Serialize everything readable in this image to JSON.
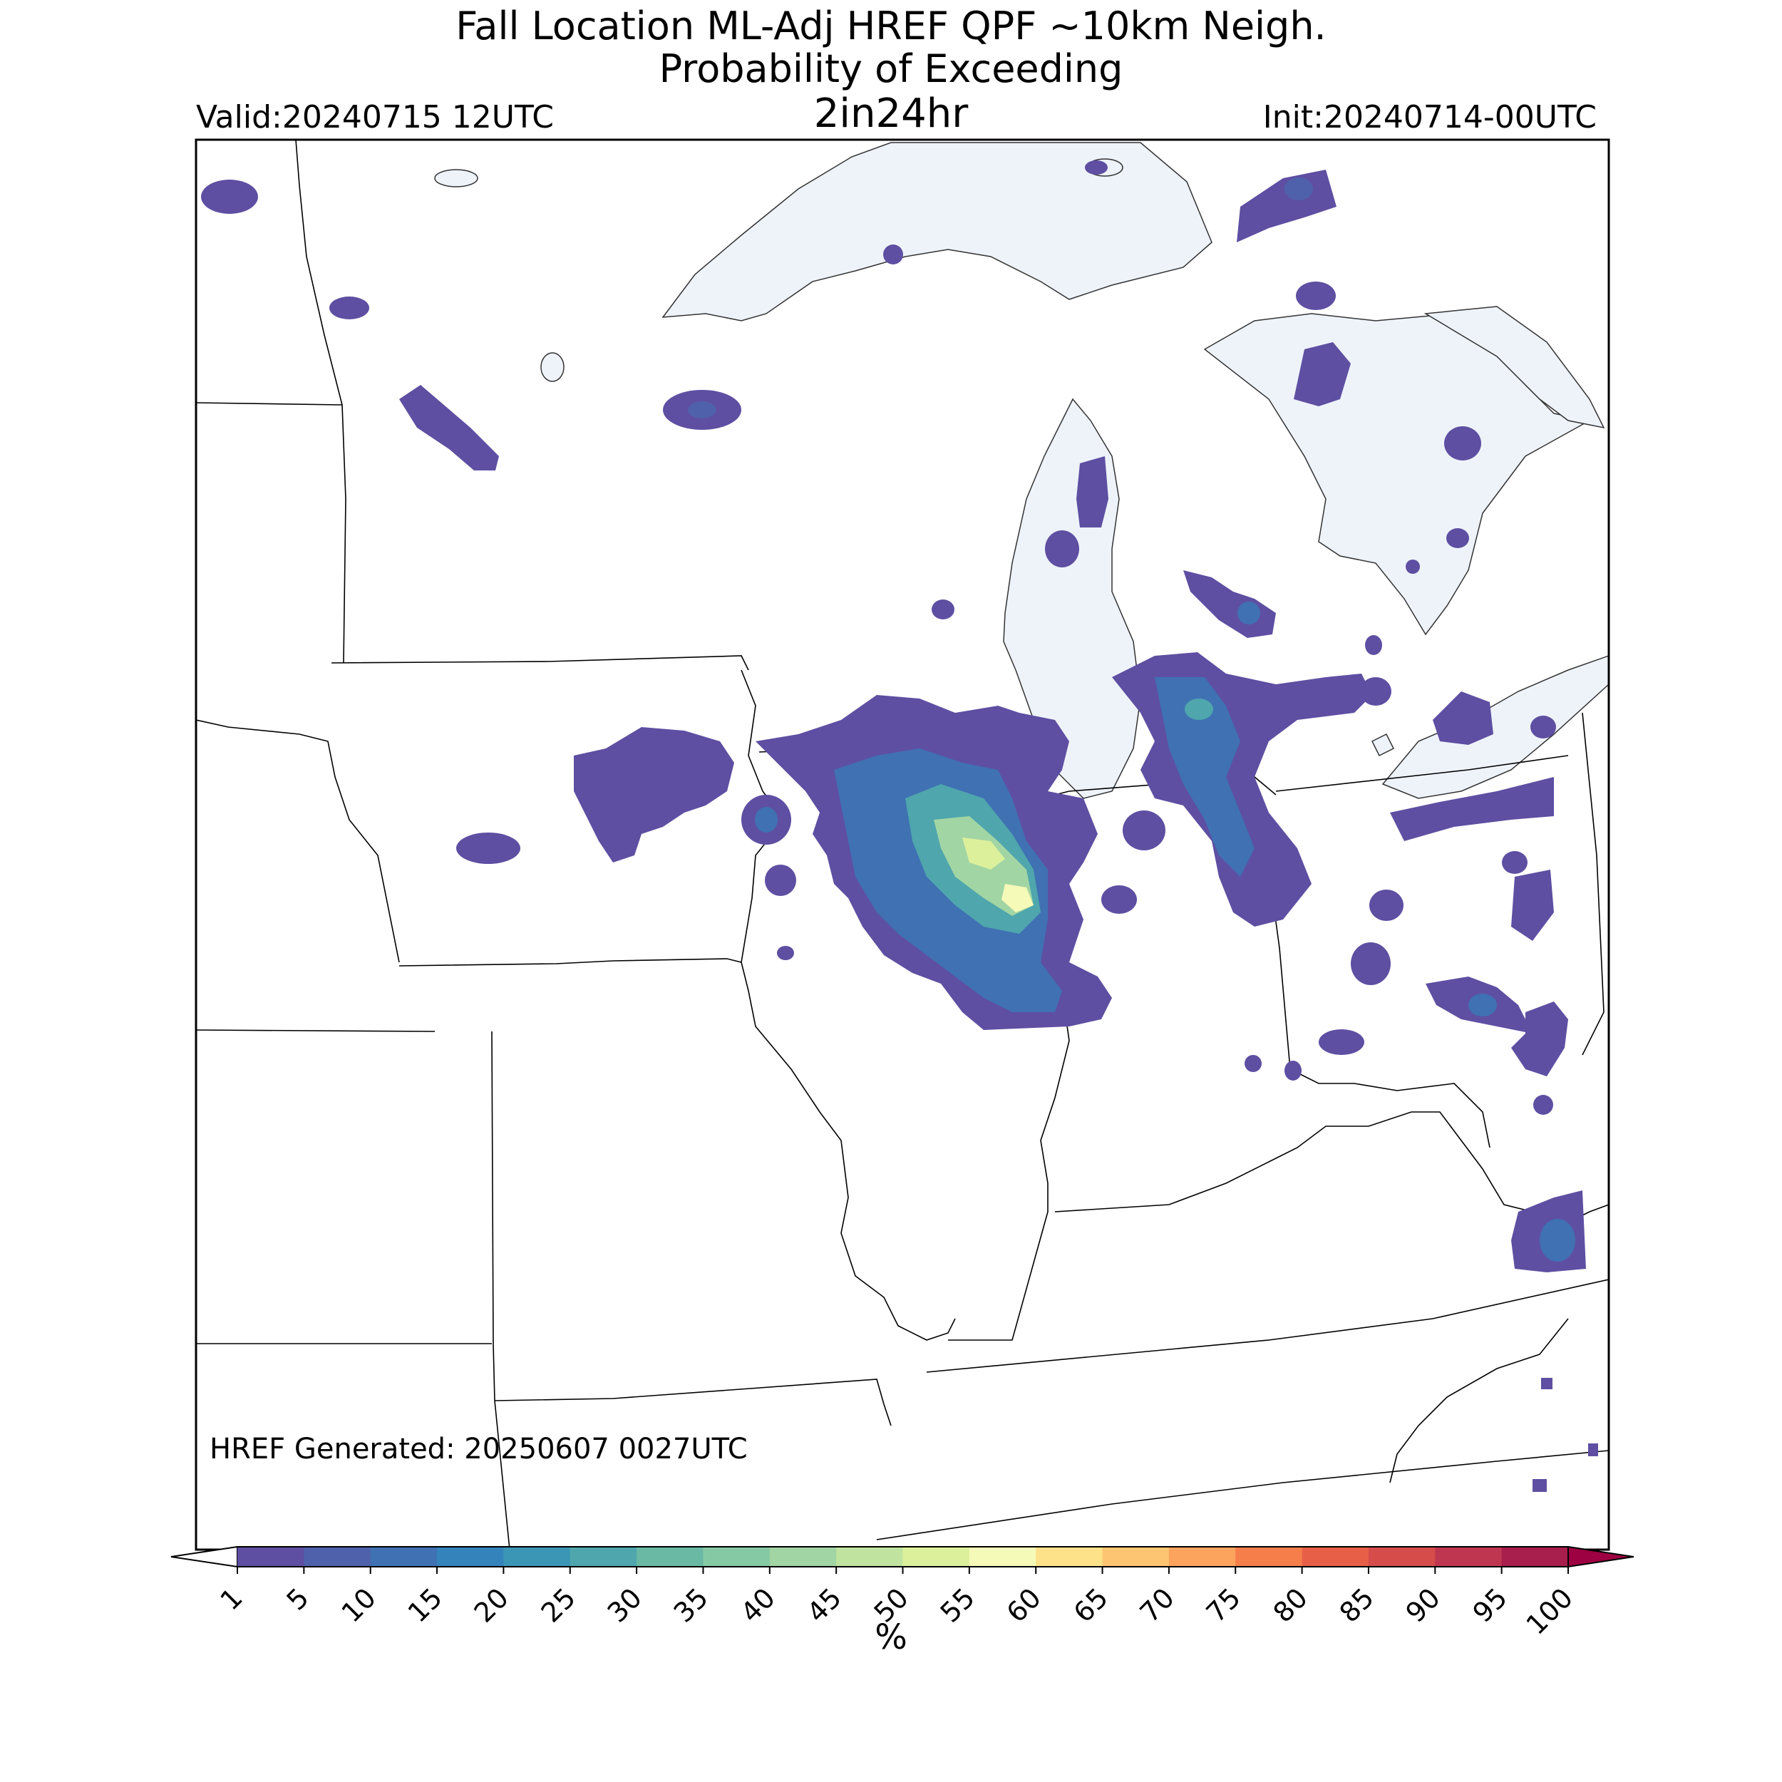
{
  "header": {
    "title_line1": "Fall Location ML-Adj HREF QPF ~10km Neigh.",
    "title_line2": "Probability of Exceeding",
    "title_line3": "2in24hr",
    "valid": "Valid:20240715 12UTC",
    "init": "Init:20240714-00UTC"
  },
  "footer": {
    "generated": "HREF Generated: 20250607 0027UTC"
  },
  "colorbar": {
    "unit_label": "%",
    "ticks": [
      "1",
      "5",
      "10",
      "15",
      "20",
      "25",
      "30",
      "35",
      "40",
      "45",
      "50",
      "55",
      "60",
      "65",
      "70",
      "75",
      "80",
      "85",
      "90",
      "95",
      "100"
    ],
    "colors": [
      "#5e4fa2",
      "#4f61aa",
      "#3f71b3",
      "#3484bb",
      "#3b96b5",
      "#4fa6ad",
      "#6ab9a4",
      "#85c9a4",
      "#a2d5a4",
      "#c0e3a0",
      "#dcf09b",
      "#f5fab8",
      "#fde28a",
      "#fdc572",
      "#fca35e",
      "#f57e4b",
      "#e85f47",
      "#d54c4b",
      "#bf3650",
      "#a81e4d"
    ],
    "under_color": "#ffffff",
    "over_color": "#9e0142"
  },
  "map": {
    "water_color": "#eef3fa",
    "border_color": "#000000"
  }
}
